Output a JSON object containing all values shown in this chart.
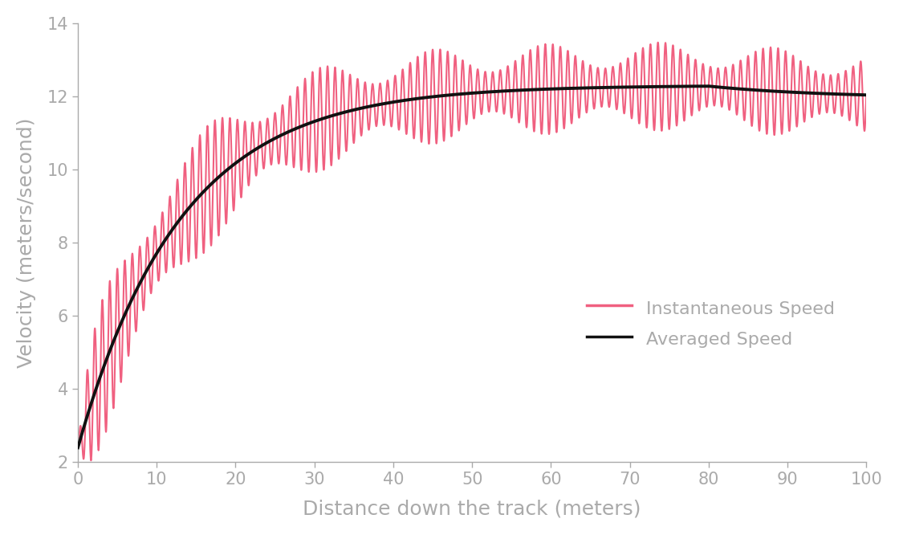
{
  "title": "",
  "xlabel": "Distance down the track (meters)",
  "ylabel": "Velocity (meters/second)",
  "xlim": [
    0,
    100
  ],
  "ylim": [
    2,
    14
  ],
  "xticks": [
    0,
    10,
    20,
    30,
    40,
    50,
    60,
    70,
    80,
    90,
    100
  ],
  "yticks": [
    2,
    4,
    6,
    8,
    10,
    12,
    14
  ],
  "avg_color": "#111111",
  "inst_color": "#F06080",
  "avg_linewidth": 2.8,
  "inst_linewidth": 1.5,
  "legend_labels": [
    "Instantaneous Speed",
    "Averaged Speed"
  ],
  "legend_fontsize": 16,
  "axis_label_fontsize": 18,
  "tick_fontsize": 15,
  "axis_color": "#AAAAAA",
  "tick_color": "#AAAAAA",
  "label_color": "#AAAAAA",
  "background_color": "#FFFFFF",
  "figsize": [
    11.2,
    6.66
  ],
  "dpi": 100,
  "avg_a": 12.3,
  "avg_b": 9.9,
  "avg_tau": 13.0,
  "avg_end_drop": 0.35,
  "avg_end_tau": 15.0,
  "osc_freq": 1.05,
  "osc_amp_base": 0.85,
  "osc_amp_extra": 0.9,
  "osc_amp_decay": 18.0,
  "osc_amp_rise_tau": 1.5,
  "osc_mod_freq": 0.07,
  "osc_mod_amp": 0.4
}
